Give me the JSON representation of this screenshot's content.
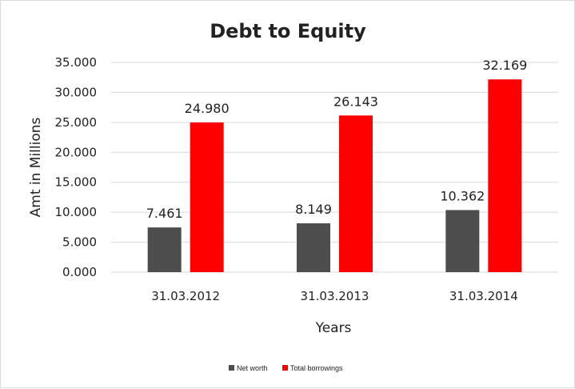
{
  "chart_data": {
    "type": "bar",
    "title": "Debt to Equity",
    "xlabel": "Years",
    "ylabel": "Amt in Millions",
    "categories": [
      "31.03.2012",
      "31.03.2013",
      "31.03.2014"
    ],
    "series": [
      {
        "name": "Net worth",
        "values": [
          7.461,
          8.149,
          10.362
        ],
        "labels": [
          "7.461",
          "8.149",
          "10.362"
        ],
        "color": "#4d4d4d"
      },
      {
        "name": "Total borrowings",
        "values": [
          24.98,
          26.143,
          32.169
        ],
        "labels": [
          "24.980",
          "26.143",
          "32.169"
        ],
        "color": "#ff0000"
      }
    ],
    "ylim": [
      0,
      35
    ],
    "yticks": [
      0,
      5,
      10,
      15,
      20,
      25,
      30,
      35
    ],
    "ytick_labels": [
      "0.000",
      "5.000",
      "10.000",
      "15.000",
      "20.000",
      "25.000",
      "30.000",
      "35.000"
    ],
    "grid": true,
    "legend": "bottom"
  }
}
